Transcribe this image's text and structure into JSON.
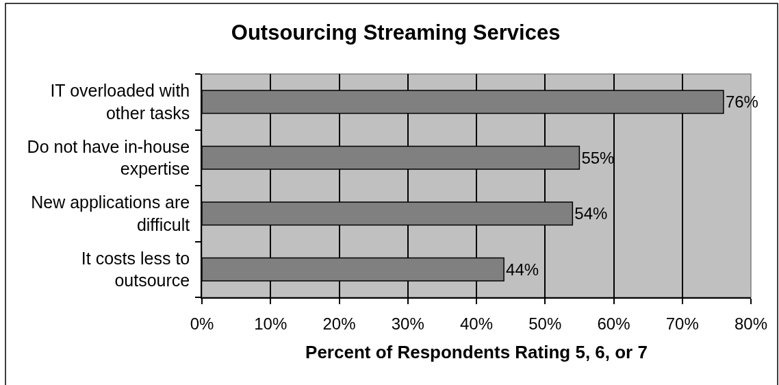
{
  "chart_data": {
    "type": "bar",
    "orientation": "horizontal",
    "title": "Outsourcing Streaming Services",
    "xlabel": "Percent of Respondents Rating 5, 6, or 7",
    "categories": [
      "IT overloaded with other tasks",
      "Do not have in-house expertise",
      "New applications are difficult",
      "It costs less to outsource"
    ],
    "values": [
      76,
      55,
      54,
      44
    ],
    "color": "#808080",
    "value_labels": [
      "76%",
      "55%",
      "54%",
      "44%"
    ],
    "xlim": [
      0,
      80
    ],
    "xticks": [
      {
        "value": 0,
        "label": "0%"
      },
      {
        "value": 10,
        "label": "10%"
      },
      {
        "value": 20,
        "label": "20%"
      },
      {
        "value": 30,
        "label": "30%"
      },
      {
        "value": 40,
        "label": "40%"
      },
      {
        "value": 50,
        "label": "50%"
      },
      {
        "value": 60,
        "label": "60%"
      },
      {
        "value": 70,
        "label": "70%"
      },
      {
        "value": 80,
        "label": "80%"
      }
    ],
    "grid": "x"
  }
}
